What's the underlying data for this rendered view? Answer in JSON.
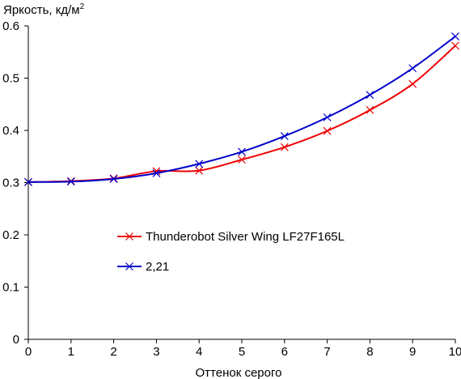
{
  "chart_data": {
    "type": "line",
    "ylabel": "Яркость, кд/м",
    "ylabel_sup": "2",
    "xlabel": "Оттенок серого",
    "xlim": [
      0,
      10
    ],
    "ylim": [
      0,
      0.6
    ],
    "x_ticks": [
      "0",
      "1",
      "2",
      "3",
      "4",
      "5",
      "6",
      "7",
      "8",
      "9",
      "10"
    ],
    "y_ticks": [
      "0",
      "0.1",
      "0.2",
      "0.3",
      "0.4",
      "0.5",
      "0.6"
    ],
    "grid": false,
    "legend_position": "center",
    "x": [
      0,
      1,
      2,
      3,
      4,
      5,
      6,
      7,
      8,
      9,
      10
    ],
    "series": [
      {
        "name": "Thunderobot Silver Wing LF27F165L",
        "color": "#ee0000",
        "marker": "x",
        "values": [
          0.301,
          0.303,
          0.308,
          0.322,
          0.323,
          0.344,
          0.368,
          0.399,
          0.439,
          0.489,
          0.562
        ]
      },
      {
        "name": "2,21",
        "color": "#0000cc",
        "marker": "x",
        "values": [
          0.301,
          0.302,
          0.307,
          0.318,
          0.336,
          0.359,
          0.389,
          0.425,
          0.468,
          0.519,
          0.58
        ]
      }
    ]
  }
}
